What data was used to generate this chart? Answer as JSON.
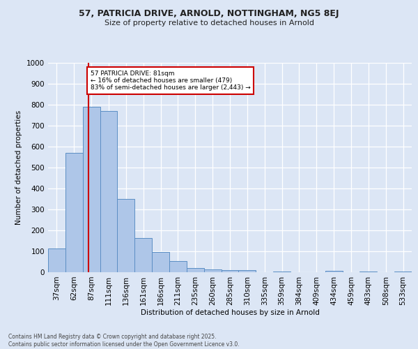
{
  "title_line1": "57, PATRICIA DRIVE, ARNOLD, NOTTINGHAM, NG5 8EJ",
  "title_line2": "Size of property relative to detached houses in Arnold",
  "xlabel": "Distribution of detached houses by size in Arnold",
  "ylabel": "Number of detached properties",
  "bar_labels": [
    "37sqm",
    "62sqm",
    "87sqm",
    "111sqm",
    "136sqm",
    "161sqm",
    "186sqm",
    "211sqm",
    "235sqm",
    "260sqm",
    "285sqm",
    "310sqm",
    "335sqm",
    "359sqm",
    "384sqm",
    "409sqm",
    "434sqm",
    "459sqm",
    "483sqm",
    "508sqm",
    "533sqm"
  ],
  "bar_values": [
    115,
    570,
    790,
    770,
    350,
    165,
    97,
    55,
    20,
    13,
    10,
    9,
    0,
    5,
    0,
    0,
    7,
    0,
    3,
    0,
    3
  ],
  "bar_color": "#aec6e8",
  "bar_edge_color": "#5b8ec4",
  "annotation_text": "57 PATRICIA DRIVE: 81sqm\n← 16% of detached houses are smaller (479)\n83% of semi-detached houses are larger (2,443) →",
  "annotation_box_color": "#ffffff",
  "annotation_box_edge": "#cc0000",
  "red_line_color": "#cc0000",
  "red_line_x": 1.85,
  "ylim": [
    0,
    1000
  ],
  "yticks": [
    0,
    100,
    200,
    300,
    400,
    500,
    600,
    700,
    800,
    900,
    1000
  ],
  "background_color": "#dce6f5",
  "plot_bg_color": "#dce6f5",
  "grid_color": "#ffffff",
  "footer_line1": "Contains HM Land Registry data © Crown copyright and database right 2025.",
  "footer_line2": "Contains public sector information licensed under the Open Government Licence v3.0."
}
